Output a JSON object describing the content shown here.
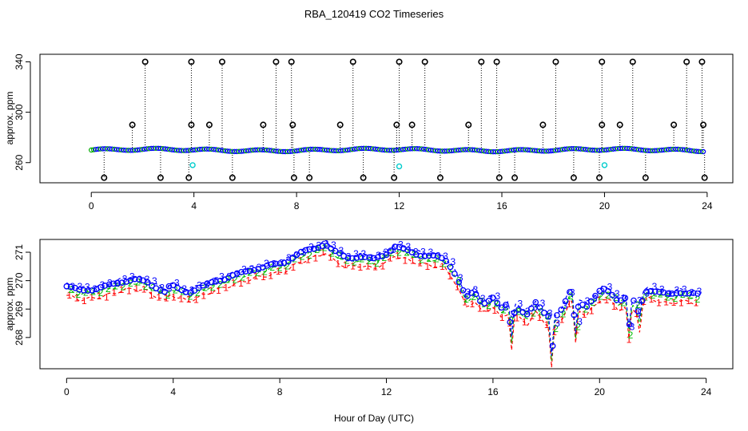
{
  "chart_data": [
    {
      "type": "scatter",
      "title": "RBA_120419  CO2 Timeseries",
      "xlabel": "",
      "ylabel": "approx. ppm",
      "xlim": [
        -2,
        25
      ],
      "ylim": [
        244,
        346
      ],
      "xticks": [
        0,
        4,
        8,
        12,
        16,
        20,
        24
      ],
      "xtick_labels": [
        "0",
        "4",
        "8",
        "12",
        "16",
        "20",
        "24"
      ],
      "yticks": [
        260,
        300,
        340
      ],
      "ytick_labels": [
        "260",
        "300",
        "340"
      ],
      "baseline": 270,
      "outliers_high_340": [
        2.1,
        3.9,
        5.1,
        7.2,
        7.8,
        10.2,
        12.0,
        13.0,
        15.2,
        15.8,
        18.1,
        19.9,
        21.1,
        23.2,
        23.8
      ],
      "outliers_high_290": [
        1.6,
        3.9,
        4.6,
        6.7,
        7.85,
        9.7,
        11.9,
        12.5,
        14.7,
        17.6,
        19.9,
        20.6,
        22.7,
        23.85
      ],
      "outliers_low_248": [
        0.5,
        2.7,
        3.8,
        5.5,
        7.9,
        8.5,
        10.6,
        11.8,
        13.6,
        15.9,
        16.5,
        18.8,
        19.8,
        21.6,
        23.9
      ],
      "cyan_points": [
        [
          3.95,
          258
        ],
        [
          12.0,
          257
        ],
        [
          20.0,
          258
        ]
      ]
    },
    {
      "type": "scatter",
      "title": "",
      "xlabel": "Hour of Day (UTC)",
      "ylabel": "approx. ppm",
      "xlim": [
        -1,
        25
      ],
      "ylim": [
        266.9,
        271.45
      ],
      "xticks": [
        0,
        4,
        8,
        12,
        16,
        20,
        24
      ],
      "xtick_labels": [
        "0",
        "4",
        "8",
        "12",
        "16",
        "20",
        "24"
      ],
      "yticks": [
        268,
        269,
        270,
        271
      ],
      "ytick_labels": [
        "268",
        "269",
        "270",
        "271"
      ],
      "series": [
        {
          "name": "1",
          "color": "#ff0000",
          "offset": -0.32
        },
        {
          "name": "2",
          "color": "#00bb00",
          "offset": -0.12
        },
        {
          "name": "3",
          "color": "#0000ff",
          "offset": 0.08
        },
        {
          "name": "circle",
          "color": "#0000ff",
          "offset": 0.0
        }
      ],
      "profile": [
        [
          0,
          269.8
        ],
        [
          0.5,
          269.65
        ],
        [
          1.0,
          269.7
        ],
        [
          1.5,
          269.8
        ],
        [
          2.0,
          269.95
        ],
        [
          2.5,
          270.05
        ],
        [
          3.0,
          269.95
        ],
        [
          3.4,
          269.75
        ],
        [
          3.7,
          269.6
        ],
        [
          3.9,
          269.85
        ],
        [
          4.2,
          269.7
        ],
        [
          4.6,
          269.6
        ],
        [
          5.0,
          269.75
        ],
        [
          5.5,
          269.95
        ],
        [
          6.0,
          270.1
        ],
        [
          6.5,
          270.25
        ],
        [
          7.0,
          270.4
        ],
        [
          7.5,
          270.5
        ],
        [
          8.0,
          270.6
        ],
        [
          8.3,
          270.7
        ],
        [
          8.7,
          270.95
        ],
        [
          9.2,
          271.1
        ],
        [
          9.7,
          271.3
        ],
        [
          10.0,
          271.05
        ],
        [
          10.5,
          270.8
        ],
        [
          11.0,
          270.85
        ],
        [
          11.5,
          270.75
        ],
        [
          12.0,
          270.95
        ],
        [
          12.3,
          271.2
        ],
        [
          12.8,
          271.05
        ],
        [
          13.3,
          270.9
        ],
        [
          13.8,
          270.85
        ],
        [
          14.2,
          270.75
        ],
        [
          14.5,
          270.4
        ],
        [
          14.8,
          269.8
        ],
        [
          15.0,
          269.4
        ],
        [
          15.3,
          269.6
        ],
        [
          15.6,
          269.2
        ],
        [
          16.0,
          269.4
        ],
        [
          16.3,
          269.0
        ],
        [
          16.6,
          269.2
        ],
        [
          17.0,
          269.0
        ],
        [
          17.3,
          268.8
        ],
        [
          17.6,
          269.2
        ],
        [
          18.0,
          268.8
        ],
        [
          18.3,
          268.7
        ],
        [
          18.6,
          269.0
        ],
        [
          18.9,
          269.6
        ],
        [
          19.2,
          269.3
        ],
        [
          19.5,
          269.1
        ],
        [
          19.8,
          269.4
        ],
        [
          20.1,
          269.7
        ],
        [
          20.4,
          269.6
        ],
        [
          20.7,
          269.3
        ],
        [
          21.0,
          269.4
        ],
        [
          21.4,
          269.2
        ],
        [
          21.8,
          269.7
        ],
        [
          22.2,
          269.6
        ],
        [
          22.6,
          269.5
        ],
        [
          23.0,
          269.6
        ],
        [
          23.5,
          269.55
        ],
        [
          23.7,
          269.5
        ]
      ],
      "dips": [
        [
          16.7,
          267.9
        ],
        [
          18.2,
          267.25
        ],
        [
          19.1,
          268.1
        ],
        [
          21.1,
          268.25
        ],
        [
          21.5,
          268.55
        ]
      ]
    }
  ]
}
